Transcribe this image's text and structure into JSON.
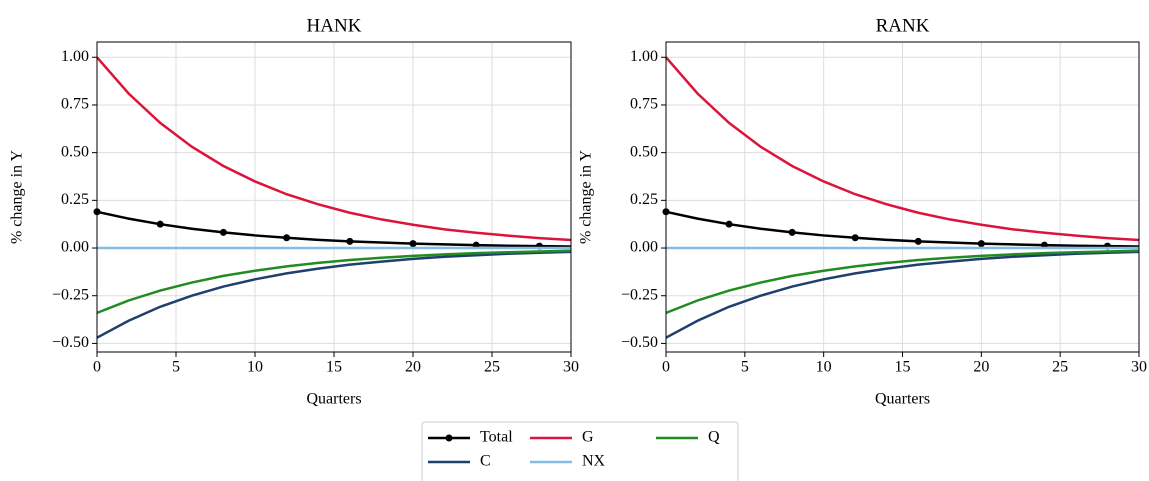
{
  "chart_data": [
    {
      "type": "line",
      "title": "HANK",
      "xlabel": "Quarters",
      "ylabel": "% change in Y",
      "x": [
        0,
        2,
        4,
        6,
        8,
        10,
        12,
        14,
        16,
        18,
        20,
        22,
        24,
        26,
        28,
        30
      ],
      "series": [
        {
          "name": "Total",
          "color": "#000000",
          "markevery": 2,
          "values": [
            0.19,
            0.154,
            0.125,
            0.101,
            0.082,
            0.066,
            0.054,
            0.043,
            0.035,
            0.029,
            0.023,
            0.019,
            0.015,
            0.012,
            0.01,
            0.008
          ]
        },
        {
          "name": "C",
          "color": "#1f3f6e",
          "values": [
            -0.47,
            -0.381,
            -0.308,
            -0.25,
            -0.202,
            -0.164,
            -0.133,
            -0.108,
            -0.087,
            -0.071,
            -0.057,
            -0.046,
            -0.038,
            -0.03,
            -0.025,
            -0.02
          ]
        },
        {
          "name": "G",
          "color": "#dc143c",
          "values": [
            1.0,
            0.81,
            0.656,
            0.531,
            0.43,
            0.349,
            0.282,
            0.229,
            0.185,
            0.15,
            0.122,
            0.098,
            0.08,
            0.065,
            0.052,
            0.042
          ]
        },
        {
          "name": "NX",
          "color": "#85bce5",
          "values": [
            0,
            0,
            0,
            0,
            0,
            0,
            0,
            0,
            0,
            0,
            0,
            0,
            0,
            0,
            0,
            0
          ]
        },
        {
          "name": "Q",
          "color": "#228b22",
          "values": [
            -0.34,
            -0.275,
            -0.223,
            -0.181,
            -0.146,
            -0.119,
            -0.096,
            -0.078,
            -0.063,
            -0.051,
            -0.041,
            -0.033,
            -0.027,
            -0.022,
            -0.018,
            -0.014
          ]
        }
      ],
      "xlim": [
        0,
        30
      ],
      "xticks": [
        0,
        5,
        10,
        15,
        20,
        25,
        30
      ],
      "ylim": [
        -0.545,
        1.08
      ],
      "yticks": [
        {
          "value": -0.5,
          "label": "−0.50"
        },
        {
          "value": -0.25,
          "label": "−0.25"
        },
        {
          "value": 0,
          "label": "0.00"
        },
        {
          "value": 0.25,
          "label": "0.25"
        },
        {
          "value": 0.5,
          "label": "0.50"
        },
        {
          "value": 0.75,
          "label": "0.75"
        },
        {
          "value": 1.0,
          "label": "1.00"
        }
      ],
      "grid": true
    },
    {
      "type": "line",
      "title": "RANK",
      "xlabel": "Quarters",
      "ylabel": "% change in Y",
      "x": [
        0,
        2,
        4,
        6,
        8,
        10,
        12,
        14,
        16,
        18,
        20,
        22,
        24,
        26,
        28,
        30
      ],
      "series": [
        {
          "name": "Total",
          "color": "#000000",
          "markevery": 2,
          "values": [
            0.19,
            0.154,
            0.125,
            0.101,
            0.082,
            0.066,
            0.054,
            0.043,
            0.035,
            0.029,
            0.023,
            0.019,
            0.015,
            0.012,
            0.01,
            0.008
          ]
        },
        {
          "name": "C",
          "color": "#1f3f6e",
          "values": [
            -0.47,
            -0.381,
            -0.308,
            -0.25,
            -0.202,
            -0.164,
            -0.133,
            -0.108,
            -0.087,
            -0.071,
            -0.057,
            -0.046,
            -0.038,
            -0.03,
            -0.025,
            -0.02
          ]
        },
        {
          "name": "G",
          "color": "#dc143c",
          "values": [
            1.0,
            0.81,
            0.656,
            0.531,
            0.43,
            0.349,
            0.282,
            0.229,
            0.185,
            0.15,
            0.122,
            0.098,
            0.08,
            0.065,
            0.052,
            0.042
          ]
        },
        {
          "name": "NX",
          "color": "#85bce5",
          "values": [
            0,
            0,
            0,
            0,
            0,
            0,
            0,
            0,
            0,
            0,
            0,
            0,
            0,
            0,
            0,
            0
          ]
        },
        {
          "name": "Q",
          "color": "#228b22",
          "values": [
            -0.34,
            -0.275,
            -0.223,
            -0.181,
            -0.146,
            -0.119,
            -0.096,
            -0.078,
            -0.063,
            -0.051,
            -0.041,
            -0.033,
            -0.027,
            -0.022,
            -0.018,
            -0.014
          ]
        }
      ],
      "xlim": [
        0,
        30
      ],
      "xticks": [
        0,
        5,
        10,
        15,
        20,
        25,
        30
      ],
      "ylim": [
        -0.545,
        1.08
      ],
      "yticks": [
        {
          "value": -0.5,
          "label": "−0.50"
        },
        {
          "value": -0.25,
          "label": "−0.25"
        },
        {
          "value": 0,
          "label": "0.00"
        },
        {
          "value": 0.25,
          "label": "0.25"
        },
        {
          "value": 0.5,
          "label": "0.50"
        },
        {
          "value": 0.75,
          "label": "0.75"
        },
        {
          "value": 1.0,
          "label": "1.00"
        }
      ],
      "grid": true
    }
  ]
}
